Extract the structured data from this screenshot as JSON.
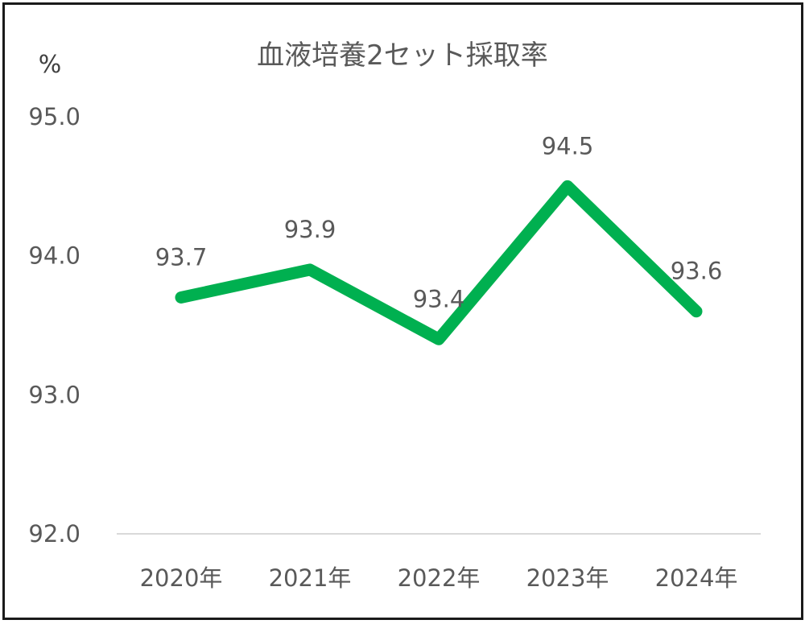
{
  "chart_data": {
    "type": "line",
    "title": "血液培養2セット採取率",
    "ylabel": "%",
    "xlabel": "",
    "categories": [
      "2020年",
      "2021年",
      "2022年",
      "2023年",
      "2024年"
    ],
    "series": [
      {
        "values": [
          93.7,
          93.9,
          93.4,
          94.5,
          93.6
        ],
        "color": "#00b050"
      }
    ],
    "data_labels": [
      "93.7",
      "93.9",
      "93.4",
      "94.5",
      "93.6"
    ],
    "ylim": [
      92.0,
      95.0
    ],
    "yticks": [
      "95.0",
      "94.0",
      "93.0",
      "92.0"
    ],
    "grid": false,
    "legend": "none",
    "axis_line_color": "#d9d9d9"
  }
}
